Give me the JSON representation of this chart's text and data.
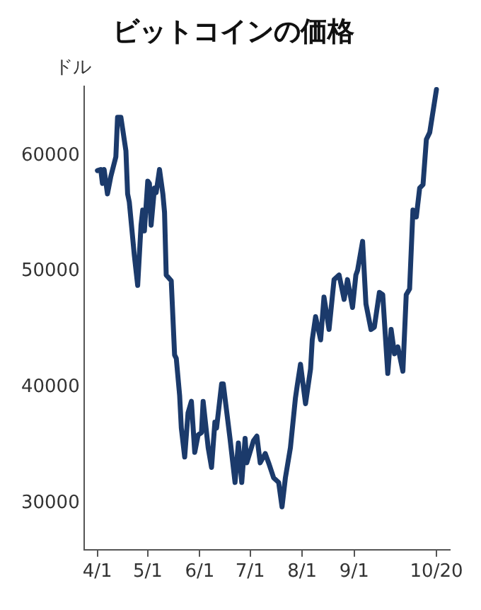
{
  "chart_data": {
    "type": "line",
    "title": "ビットコインの価格",
    "ylabel": "ドル",
    "x": [
      "--04-01",
      "--04-03",
      "--04-04",
      "--04-05",
      "--04-07",
      "--04-09",
      "--04-12",
      "--04-13",
      "--04-15",
      "--04-18",
      "--04-19",
      "--04-20",
      "--04-23",
      "--04-25",
      "--04-27",
      "--04-28",
      "--04-29",
      "--05-01",
      "--05-02",
      "--05-03",
      "--05-05",
      "--05-06",
      "--05-08",
      "--05-10",
      "--05-11",
      "--05-12",
      "--05-15",
      "--05-17",
      "--05-18",
      "--05-20",
      "--05-21",
      "--05-23",
      "--05-25",
      "--05-27",
      "--05-29",
      "--05-31",
      "--06-02",
      "--06-03",
      "--06-06",
      "--06-08",
      "--06-10",
      "--06-11",
      "--06-14",
      "--06-15",
      "--06-19",
      "--06-22",
      "--06-24",
      "--06-26",
      "--06-28",
      "--06-29",
      "--07-03",
      "--07-05",
      "--07-07",
      "--07-10",
      "--07-12",
      "--07-15",
      "--07-18",
      "--07-20",
      "--07-22",
      "--07-25",
      "--07-28",
      "--07-29",
      "--07-31",
      "--08-03",
      "--08-06",
      "--08-07",
      "--08-09",
      "--08-12",
      "--08-14",
      "--08-17",
      "--08-20",
      "--08-23",
      "--08-26",
      "--08-28",
      "--08-31",
      "--09-02",
      "--09-03",
      "--09-06",
      "--09-08",
      "--09-11",
      "--09-13",
      "--09-16",
      "--09-18",
      "--09-21",
      "--09-23",
      "--09-25",
      "--09-27",
      "--09-30",
      "--10-02",
      "--10-04",
      "--10-06",
      "--10-08",
      "--10-10",
      "--10-12",
      "--10-14",
      "--10-16",
      "--10-20"
    ],
    "series": [
      {
        "color": "#1b3a6b",
        "values": [
          58700,
          58800,
          57600,
          58800,
          56700,
          58200,
          59900,
          63300,
          63300,
          60400,
          56700,
          56000,
          51400,
          48800,
          54000,
          55300,
          53500,
          57800,
          57600,
          54000,
          57200,
          56800,
          58800,
          56700,
          55100,
          49700,
          49200,
          42800,
          42500,
          39300,
          36500,
          34000,
          37800,
          38800,
          34400,
          35900,
          36100,
          38800,
          34800,
          33100,
          37000,
          36500,
          40300,
          40300,
          35600,
          31800,
          35200,
          31800,
          35600,
          33500,
          35400,
          35800,
          33500,
          34300,
          33500,
          32200,
          31800,
          29700,
          32200,
          34800,
          39100,
          40100,
          42000,
          38600,
          41600,
          44100,
          46100,
          44100,
          47800,
          45000,
          49300,
          49700,
          47600,
          49300,
          46900,
          49700,
          50100,
          52600,
          47200,
          45000,
          45200,
          48200,
          48000,
          41200,
          45000,
          42900,
          43500,
          41400,
          48000,
          48500,
          55300,
          54700,
          57200,
          57500,
          61400,
          62000,
          65700
        ]
      }
    ],
    "xlim": [
      "--03-24",
      "--10-28"
    ],
    "xticks": [
      {
        "value": "--04-01",
        "label": "4/1"
      },
      {
        "value": "--05-01",
        "label": "5/1"
      },
      {
        "value": "--06-01",
        "label": "6/1"
      },
      {
        "value": "--07-01",
        "label": "7/1"
      },
      {
        "value": "--08-01",
        "label": "8/1"
      },
      {
        "value": "--09-01",
        "label": "9/1"
      },
      {
        "value": "--10-20",
        "label": "10/20"
      }
    ],
    "ylim": [
      26000,
      66000
    ],
    "yticks": [
      30000,
      40000,
      50000,
      60000
    ],
    "grid": false,
    "legend": false,
    "marker": "none",
    "line_style": "solid"
  }
}
